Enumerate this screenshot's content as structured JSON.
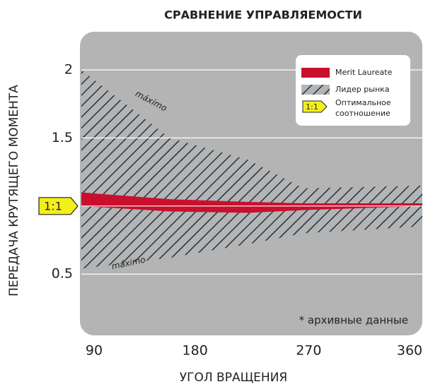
{
  "chart_data": {
    "type": "band",
    "title": "СРАВНЕНИЕ УПРАВЛЯЕМОСТИ",
    "x_label": "УГОЛ ВРАЩЕНИЯ",
    "y_label": "ПЕРЕДАЧА КРУТЯЩЕГО МОМЕНТА",
    "xlim": [
      90,
      360
    ],
    "xticks": [
      90,
      180,
      270,
      360
    ],
    "ylim": [
      0.05,
      2.28
    ],
    "yticks": [
      0.5,
      {
        "value": 1,
        "label": "1:1"
      },
      1.5,
      2
    ],
    "grid": true,
    "series": [
      {
        "name": "Лидер рынка",
        "color": "#1e3444",
        "pattern": "hatch",
        "x": [
          90,
          160,
          222,
          266,
          360
        ],
        "upper": [
          2.0,
          1.5,
          1.34,
          1.13,
          1.15
        ],
        "lower": [
          0.54,
          0.62,
          0.72,
          0.8,
          0.85
        ]
      },
      {
        "name": "Merit Laureate",
        "color": "#c8102e",
        "x": [
          90,
          160,
          222,
          266,
          360
        ],
        "upper": [
          1.1,
          1.05,
          1.03,
          1.02,
          1.02
        ],
        "lower": [
          1.0,
          0.96,
          0.95,
          0.97,
          1.0
        ]
      }
    ],
    "legend_extra": {
      "icon": "1:1",
      "lines": [
        "Оптимальное",
        "соотношение"
      ]
    },
    "legend": "top-right",
    "annotations": [
      "máximo",
      "máximo",
      "* архивные данные"
    ]
  }
}
